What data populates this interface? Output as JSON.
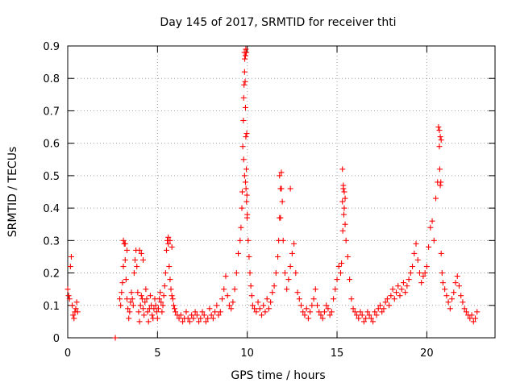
{
  "chart_data": {
    "type": "scatter",
    "title": "Day 145 of 2017, SRMTID for receiver thti",
    "xlabel": "GPS time / hours",
    "ylabel": "SRMTID / TECUs",
    "xlim": [
      0,
      23.8
    ],
    "ylim": [
      0,
      0.9
    ],
    "x_ticks": [
      0,
      5,
      10,
      15,
      20
    ],
    "x_tick_labels": [
      "0",
      "5",
      "10",
      "15",
      "20"
    ],
    "y_ticks": [
      0,
      0.1,
      0.2,
      0.3,
      0.4,
      0.5,
      0.6,
      0.7,
      0.8,
      0.9
    ],
    "y_tick_labels": [
      "0",
      "0.1",
      "0.2",
      "0.3",
      "0.4",
      "0.5",
      "0.6",
      "0.7",
      "0.8",
      "0.9"
    ],
    "grid": true,
    "marker": "+",
    "series": [
      {
        "name": "SRMTID",
        "color": "#ff0000",
        "x": [
          0.0,
          0.05,
          0.1,
          0.15,
          0.2,
          0.25,
          0.3,
          0.35,
          0.4,
          0.45,
          0.5,
          0.55,
          2.65,
          2.9,
          2.95,
          3.0,
          3.05,
          3.1,
          3.15,
          3.2,
          3.25,
          3.3,
          3.35,
          3.4,
          3.45,
          3.5,
          3.55,
          3.6,
          3.65,
          3.7,
          3.75,
          3.8,
          3.85,
          3.9,
          3.95,
          4.0,
          4.05,
          4.1,
          4.15,
          4.2,
          4.25,
          4.3,
          4.35,
          4.4,
          4.45,
          4.5,
          4.55,
          4.6,
          4.65,
          4.7,
          4.75,
          4.8,
          4.85,
          4.9,
          4.95,
          5.0,
          5.05,
          5.1,
          5.15,
          5.2,
          5.25,
          5.3,
          5.35,
          5.4,
          5.45,
          5.5,
          5.55,
          5.6,
          5.65,
          5.7,
          5.75,
          5.8,
          5.85,
          5.9,
          5.95,
          6.0,
          6.1,
          6.2,
          6.3,
          6.4,
          6.5,
          6.6,
          6.7,
          6.8,
          6.9,
          7.0,
          7.1,
          7.2,
          7.3,
          7.4,
          7.5,
          7.6,
          7.7,
          7.8,
          7.9,
          8.0,
          8.1,
          8.2,
          8.3,
          8.4,
          8.5,
          8.6,
          8.7,
          8.8,
          8.9,
          9.0,
          9.1,
          9.2,
          9.3,
          9.4,
          9.5,
          9.6,
          9.65,
          9.7,
          9.72,
          9.75,
          9.78,
          9.8,
          9.82,
          9.85,
          9.88,
          9.9,
          9.92,
          9.95,
          9.98,
          10.0,
          10.05,
          10.1,
          10.15,
          10.2,
          10.25,
          10.3,
          10.4,
          10.5,
          10.6,
          10.7,
          10.8,
          10.9,
          11.0,
          11.1,
          11.2,
          11.3,
          11.4,
          11.5,
          11.6,
          11.7,
          11.75,
          11.8,
          11.85,
          11.9,
          11.95,
          12.0,
          12.1,
          12.2,
          12.3,
          12.4,
          12.5,
          12.6,
          12.7,
          12.8,
          12.9,
          13.0,
          13.1,
          13.2,
          13.3,
          13.4,
          13.5,
          13.6,
          13.7,
          13.8,
          13.9,
          14.0,
          14.1,
          14.2,
          14.3,
          14.4,
          14.5,
          14.6,
          14.7,
          14.8,
          14.9,
          15.0,
          15.1,
          15.2,
          15.25,
          15.3,
          15.35,
          15.4,
          15.45,
          15.5,
          15.6,
          15.7,
          15.8,
          15.9,
          16.0,
          16.1,
          16.2,
          16.3,
          16.4,
          16.5,
          16.6,
          16.7,
          16.8,
          16.9,
          17.0,
          17.1,
          17.2,
          17.3,
          17.4,
          17.5,
          17.6,
          17.7,
          17.8,
          17.9,
          18.0,
          18.1,
          18.2,
          18.3,
          18.4,
          18.5,
          18.6,
          18.7,
          18.8,
          18.9,
          19.0,
          19.1,
          19.2,
          19.3,
          19.4,
          19.5,
          19.6,
          19.7,
          19.8,
          19.9,
          20.0,
          20.1,
          20.2,
          20.3,
          20.4,
          20.5,
          20.6,
          20.7,
          20.75,
          20.8,
          20.85,
          20.9,
          21.0,
          21.1,
          21.2,
          21.3,
          21.4,
          21.5,
          21.6,
          21.7,
          21.8,
          21.9,
          22.0,
          22.1,
          22.2,
          22.3,
          22.4,
          22.5,
          22.6,
          22.7,
          22.8,
          9.84,
          9.86,
          9.9,
          9.92,
          9.95,
          9.97,
          9.8,
          9.85,
          9.9,
          9.93,
          9.96,
          9.99,
          11.8,
          11.85,
          11.9,
          12.4,
          20.65,
          20.7,
          20.75,
          20.8,
          20.72,
          20.78,
          15.3,
          15.35,
          15.4,
          15.45,
          15.32,
          15.38,
          4.0,
          4.1,
          4.2,
          5.6,
          5.7,
          5.8,
          3.1,
          3.2,
          3.3
        ],
        "y": [
          0.15,
          0.13,
          0.12,
          0.22,
          0.25,
          0.1,
          0.07,
          0.06,
          0.08,
          0.09,
          0.11,
          0.08,
          0.0,
          0.12,
          0.1,
          0.14,
          0.17,
          0.22,
          0.29,
          0.24,
          0.18,
          0.12,
          0.09,
          0.06,
          0.08,
          0.11,
          0.14,
          0.12,
          0.1,
          0.2,
          0.24,
          0.27,
          0.22,
          0.14,
          0.08,
          0.05,
          0.1,
          0.13,
          0.12,
          0.09,
          0.07,
          0.11,
          0.15,
          0.12,
          0.08,
          0.05,
          0.09,
          0.13,
          0.1,
          0.07,
          0.06,
          0.09,
          0.12,
          0.1,
          0.08,
          0.06,
          0.09,
          0.12,
          0.14,
          0.11,
          0.08,
          0.1,
          0.13,
          0.16,
          0.2,
          0.27,
          0.3,
          0.31,
          0.22,
          0.18,
          0.15,
          0.13,
          0.12,
          0.1,
          0.09,
          0.08,
          0.07,
          0.06,
          0.07,
          0.05,
          0.06,
          0.08,
          0.06,
          0.05,
          0.07,
          0.06,
          0.08,
          0.07,
          0.05,
          0.06,
          0.08,
          0.07,
          0.05,
          0.06,
          0.09,
          0.07,
          0.06,
          0.08,
          0.1,
          0.07,
          0.08,
          0.12,
          0.15,
          0.19,
          0.13,
          0.1,
          0.09,
          0.11,
          0.15,
          0.2,
          0.26,
          0.3,
          0.34,
          0.4,
          0.45,
          0.59,
          0.67,
          0.74,
          0.78,
          0.82,
          0.79,
          0.71,
          0.62,
          0.52,
          0.44,
          0.38,
          0.3,
          0.25,
          0.2,
          0.16,
          0.13,
          0.1,
          0.09,
          0.08,
          0.11,
          0.09,
          0.07,
          0.1,
          0.08,
          0.12,
          0.09,
          0.11,
          0.14,
          0.16,
          0.2,
          0.25,
          0.3,
          0.37,
          0.46,
          0.51,
          0.42,
          0.3,
          0.2,
          0.15,
          0.18,
          0.22,
          0.26,
          0.29,
          0.2,
          0.14,
          0.12,
          0.1,
          0.08,
          0.07,
          0.09,
          0.06,
          0.08,
          0.1,
          0.12,
          0.15,
          0.1,
          0.08,
          0.07,
          0.06,
          0.08,
          0.1,
          0.09,
          0.07,
          0.08,
          0.12,
          0.15,
          0.18,
          0.22,
          0.2,
          0.23,
          0.42,
          0.46,
          0.4,
          0.35,
          0.3,
          0.25,
          0.18,
          0.12,
          0.09,
          0.08,
          0.07,
          0.06,
          0.08,
          0.07,
          0.05,
          0.06,
          0.08,
          0.07,
          0.06,
          0.05,
          0.08,
          0.07,
          0.09,
          0.1,
          0.08,
          0.09,
          0.11,
          0.12,
          0.1,
          0.13,
          0.15,
          0.12,
          0.14,
          0.16,
          0.13,
          0.15,
          0.17,
          0.14,
          0.16,
          0.18,
          0.2,
          0.22,
          0.26,
          0.29,
          0.24,
          0.2,
          0.17,
          0.19,
          0.2,
          0.22,
          0.28,
          0.34,
          0.36,
          0.3,
          0.43,
          0.48,
          0.59,
          0.47,
          0.26,
          0.2,
          0.17,
          0.15,
          0.13,
          0.11,
          0.09,
          0.12,
          0.14,
          0.17,
          0.19,
          0.16,
          0.13,
          0.11,
          0.09,
          0.08,
          0.07,
          0.06,
          0.07,
          0.05,
          0.06,
          0.08,
          0.88,
          0.86,
          0.87,
          0.89,
          0.88,
          0.63,
          0.55,
          0.5,
          0.48,
          0.46,
          0.42,
          0.37,
          0.5,
          0.37,
          0.46,
          0.46,
          0.65,
          0.64,
          0.62,
          0.61,
          0.52,
          0.48,
          0.52,
          0.47,
          0.45,
          0.43,
          0.33,
          0.38,
          0.27,
          0.26,
          0.24,
          0.29,
          0.3,
          0.28,
          0.3,
          0.29,
          0.27
        ]
      }
    ]
  }
}
